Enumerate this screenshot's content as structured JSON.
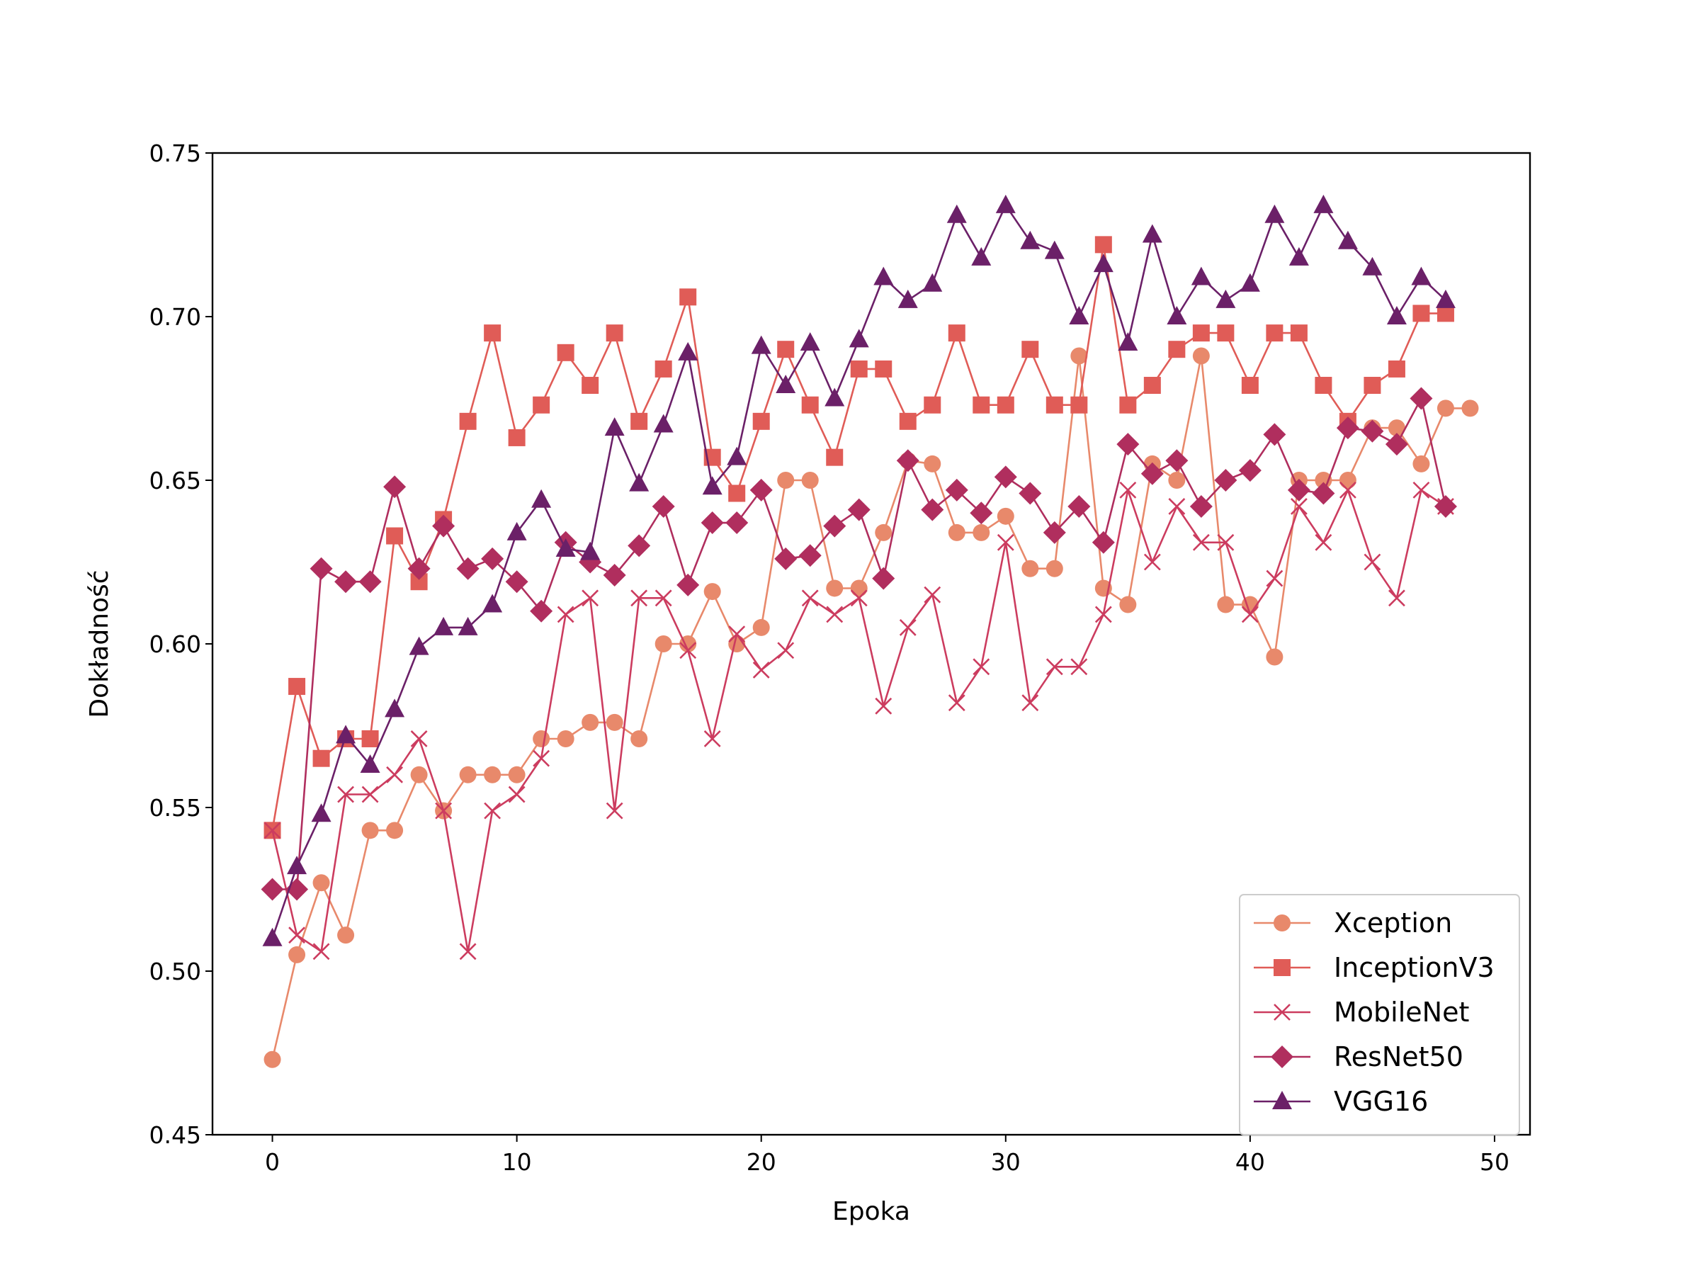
{
  "chart_data": {
    "type": "line",
    "title": "",
    "xlabel": "Epoka",
    "ylabel": "Dokładność",
    "xlim": [
      -2.45,
      51.45
    ],
    "ylim": [
      0.45,
      0.75
    ],
    "xticks": [
      0,
      10,
      20,
      30,
      40,
      50
    ],
    "yticks": [
      0.45,
      0.5,
      0.55,
      0.6,
      0.65,
      0.7,
      0.75
    ],
    "ytick_labels": [
      "0.45",
      "0.50",
      "0.55",
      "0.60",
      "0.65",
      "0.70",
      "0.75"
    ],
    "grid": false,
    "legend_position": "lower-right",
    "series": [
      {
        "name": "Xception",
        "color": "#e8896b",
        "marker": "circle",
        "x": [
          0,
          1,
          2,
          3,
          4,
          5,
          6,
          7,
          8,
          9,
          10,
          11,
          12,
          13,
          14,
          15,
          16,
          17,
          18,
          19,
          20,
          21,
          22,
          23,
          24,
          25,
          26,
          27,
          28,
          29,
          30,
          31,
          32,
          33,
          34,
          35,
          36,
          37,
          38,
          39,
          40,
          41,
          42,
          43,
          44,
          45,
          46,
          47,
          48,
          49
        ],
        "values": [
          0.473,
          0.505,
          0.527,
          0.511,
          0.543,
          0.543,
          0.56,
          0.549,
          0.56,
          0.56,
          0.56,
          0.571,
          0.571,
          0.576,
          0.576,
          0.571,
          0.6,
          0.6,
          0.616,
          0.6,
          0.605,
          0.65,
          0.65,
          0.617,
          0.617,
          0.634,
          0.656,
          0.655,
          0.634,
          0.634,
          0.639,
          0.623,
          0.623,
          0.688,
          0.617,
          0.612,
          0.655,
          0.65,
          0.688,
          0.612,
          0.612,
          0.596,
          0.65,
          0.65,
          0.65,
          0.666,
          0.666,
          0.655,
          0.672,
          0.672
        ]
      },
      {
        "name": "InceptionV3",
        "color": "#e05c57",
        "marker": "square",
        "x": [
          0,
          1,
          2,
          3,
          4,
          5,
          6,
          7,
          8,
          9,
          10,
          11,
          12,
          13,
          14,
          15,
          16,
          17,
          18,
          19,
          20,
          21,
          22,
          23,
          24,
          25,
          26,
          27,
          28,
          29,
          30,
          31,
          32,
          33,
          34,
          35,
          36,
          37,
          38,
          39,
          40,
          41,
          42,
          43,
          44,
          45,
          46,
          47,
          48
        ],
        "values": [
          0.543,
          0.587,
          0.565,
          0.571,
          0.571,
          0.633,
          0.619,
          0.638,
          0.668,
          0.695,
          0.663,
          0.673,
          0.689,
          0.679,
          0.695,
          0.668,
          0.684,
          0.706,
          0.657,
          0.646,
          0.668,
          0.69,
          0.673,
          0.657,
          0.684,
          0.684,
          0.668,
          0.673,
          0.695,
          0.673,
          0.673,
          0.69,
          0.673,
          0.673,
          0.722,
          0.673,
          0.679,
          0.69,
          0.695,
          0.695,
          0.679,
          0.695,
          0.695,
          0.679,
          0.668,
          0.679,
          0.684,
          0.701,
          0.701
        ]
      },
      {
        "name": "MobileNet",
        "color": "#cc3c5f",
        "marker": "x",
        "x": [
          0,
          1,
          2,
          3,
          4,
          5,
          6,
          7,
          8,
          9,
          10,
          11,
          12,
          13,
          14,
          15,
          16,
          17,
          18,
          19,
          20,
          21,
          22,
          23,
          24,
          25,
          26,
          27,
          28,
          29,
          30,
          31,
          32,
          33,
          34,
          35,
          36,
          37,
          38,
          39,
          40,
          41,
          42,
          43,
          44,
          45,
          46,
          47,
          48
        ],
        "values": [
          0.543,
          0.511,
          0.506,
          0.554,
          0.554,
          0.56,
          0.571,
          0.549,
          0.506,
          0.549,
          0.554,
          0.565,
          0.609,
          0.614,
          0.549,
          0.614,
          0.614,
          0.598,
          0.571,
          0.603,
          0.592,
          0.598,
          0.614,
          0.609,
          0.614,
          0.581,
          0.605,
          0.615,
          0.582,
          0.593,
          0.631,
          0.582,
          0.593,
          0.593,
          0.609,
          0.647,
          0.625,
          0.642,
          0.631,
          0.631,
          0.609,
          0.62,
          0.642,
          0.631,
          0.647,
          0.625,
          0.614,
          0.647,
          0.642
        ]
      },
      {
        "name": "ResNet50",
        "color": "#b02e5e",
        "marker": "diamond",
        "x": [
          0,
          1,
          2,
          3,
          4,
          5,
          6,
          7,
          8,
          9,
          10,
          11,
          12,
          13,
          14,
          15,
          16,
          17,
          18,
          19,
          20,
          21,
          22,
          23,
          24,
          25,
          26,
          27,
          28,
          29,
          30,
          31,
          32,
          33,
          34,
          35,
          36,
          37,
          38,
          39,
          40,
          41,
          42,
          43,
          44,
          45,
          46,
          47,
          48
        ],
        "values": [
          0.525,
          0.525,
          0.623,
          0.619,
          0.619,
          0.648,
          0.623,
          0.636,
          0.623,
          0.626,
          0.619,
          0.61,
          0.631,
          0.625,
          0.621,
          0.63,
          0.642,
          0.618,
          0.637,
          0.637,
          0.647,
          0.626,
          0.627,
          0.636,
          0.641,
          0.62,
          0.656,
          0.641,
          0.647,
          0.64,
          0.651,
          0.646,
          0.634,
          0.642,
          0.631,
          0.661,
          0.652,
          0.656,
          0.642,
          0.65,
          0.653,
          0.664,
          0.647,
          0.646,
          0.666,
          0.665,
          0.661,
          0.675,
          0.642
        ]
      },
      {
        "name": "VGG16",
        "color": "#6b2068",
        "marker": "triangle",
        "x": [
          0,
          1,
          2,
          3,
          4,
          5,
          6,
          7,
          8,
          9,
          10,
          11,
          12,
          13,
          14,
          15,
          16,
          17,
          18,
          19,
          20,
          21,
          22,
          23,
          24,
          25,
          26,
          27,
          28,
          29,
          30,
          31,
          32,
          33,
          34,
          35,
          36,
          37,
          38,
          39,
          40,
          41,
          42,
          43,
          44,
          45,
          46,
          47,
          48
        ],
        "values": [
          0.51,
          0.532,
          0.548,
          0.572,
          0.563,
          0.58,
          0.599,
          0.605,
          0.605,
          0.612,
          0.634,
          0.644,
          0.629,
          0.628,
          0.666,
          0.649,
          0.667,
          0.689,
          0.648,
          0.657,
          0.691,
          0.679,
          0.692,
          0.675,
          0.693,
          0.712,
          0.705,
          0.71,
          0.731,
          0.718,
          0.734,
          0.723,
          0.72,
          0.7,
          0.716,
          0.692,
          0.725,
          0.7,
          0.712,
          0.705,
          0.71,
          0.731,
          0.718,
          0.734,
          0.723,
          0.715,
          0.7,
          0.712,
          0.705
        ]
      }
    ]
  }
}
